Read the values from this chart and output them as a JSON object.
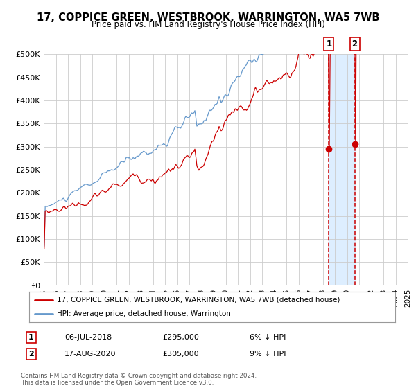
{
  "title": "17, COPPICE GREEN, WESTBROOK, WARRINGTON, WA5 7WB",
  "subtitle": "Price paid vs. HM Land Registry's House Price Index (HPI)",
  "legend_line1": "17, COPPICE GREEN, WESTBROOK, WARRINGTON, WA5 7WB (detached house)",
  "legend_line2": "HPI: Average price, detached house, Warrington",
  "annotation1_label": "1",
  "annotation1_date": "06-JUL-2018",
  "annotation1_price": "£295,000",
  "annotation1_note": "6% ↓ HPI",
  "annotation2_label": "2",
  "annotation2_date": "17-AUG-2020",
  "annotation2_price": "£305,000",
  "annotation2_note": "9% ↓ HPI",
  "footer": "Contains HM Land Registry data © Crown copyright and database right 2024.\nThis data is licensed under the Open Government Licence v3.0.",
  "red_line_color": "#cc0000",
  "blue_line_color": "#6699cc",
  "marker_color": "#cc0000",
  "shade_color": "#ddeeff",
  "vline_color": "#cc0000",
  "grid_color": "#cccccc",
  "background_color": "#ffffff",
  "ylim": [
    0,
    500000
  ],
  "ytick_step": 50000,
  "year_start": 1995,
  "year_end": 2025,
  "marker1_year": 2018.51,
  "marker2_year": 2020.63,
  "marker1_price": 295000,
  "marker2_price": 305000
}
